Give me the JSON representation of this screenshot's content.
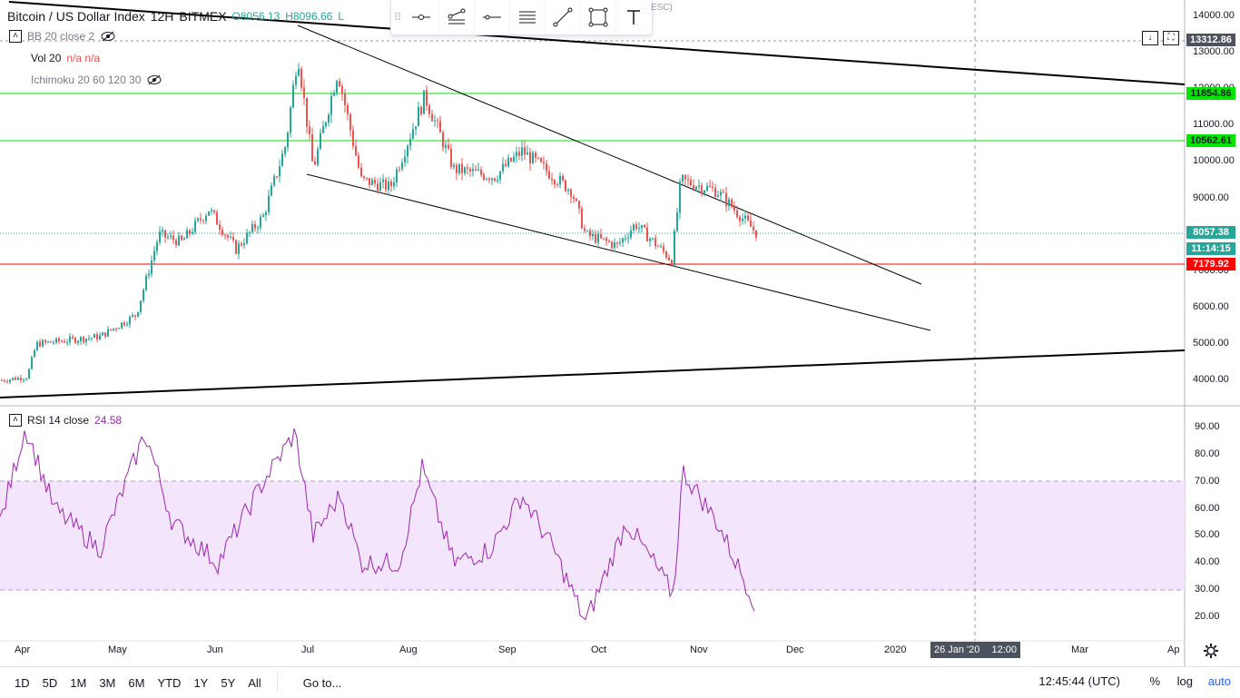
{
  "symbol": {
    "title": "Bitcoin / US Dollar Index",
    "interval": "12H",
    "exchange": "BITMEX",
    "open": "O8056.13",
    "high": "H8096.66",
    "low_partial": "L"
  },
  "legend": {
    "bb": "BB 20 close 2",
    "vol_name": "Vol 20",
    "vol_values": "n/a n/a",
    "ichimoku": "Ichimoku 20 60 120 30",
    "rsi_name": "RSI 14 close",
    "rsi_value": "24.58"
  },
  "toolbar_hint": "ESC)",
  "price_axis": {
    "ticks": [
      "14000.00",
      "13000.00",
      "12000.00",
      "11000.00",
      "10000.00",
      "9000.00",
      "8000.00",
      "7000.00",
      "6000.00",
      "5000.00",
      "4000.00"
    ],
    "labels": [
      {
        "text": "13312.86",
        "color": "#4c525e"
      },
      {
        "text": "11854.86",
        "color": "#00e600"
      },
      {
        "text": "10562.61",
        "color": "#00e600"
      },
      {
        "text": "8057.38",
        "color": "#26a69a"
      },
      {
        "text": "11:14:15",
        "color": "#26a69a"
      },
      {
        "text": "7179.92",
        "color": "#ff0000"
      }
    ]
  },
  "rsi_axis": {
    "ticks": [
      "90.00",
      "80.00",
      "70.00",
      "60.00",
      "50.00",
      "40.00",
      "30.00",
      "20.00"
    ]
  },
  "time_axis": {
    "ticks": [
      "Apr",
      "May",
      "Jun",
      "Jul",
      "Aug",
      "Sep",
      "Oct",
      "Nov",
      "Dec",
      "2020",
      "Mar",
      "Ap"
    ],
    "crosshair_date": "26 Jan '20",
    "crosshair_time": "12:00"
  },
  "bottom_bar": {
    "ranges": [
      "1D",
      "5D",
      "1M",
      "3M",
      "6M",
      "YTD",
      "1Y",
      "5Y",
      "All"
    ],
    "goto": "Go to...",
    "clock": "12:45:44 (UTC)",
    "percent": "%",
    "log": "log",
    "auto": "auto"
  },
  "colors": {
    "up": "#26a69a",
    "down": "#ef5350",
    "support_line": "#00e600",
    "red_line": "#ff0000",
    "rsi": "#9c27b0",
    "rsi_band": "#f3e5fb",
    "accent_auto": "#2962ff"
  },
  "icons": [
    "horizontal-ray-icon",
    "parallel-channel-icon",
    "horizontal-line-icon",
    "pitchfan-icon",
    "trend-line-icon",
    "rectangle-icon",
    "text-icon",
    "download-icon",
    "fullscreen-icon",
    "settings-gear-icon",
    "eye-crossed-icon"
  ]
}
